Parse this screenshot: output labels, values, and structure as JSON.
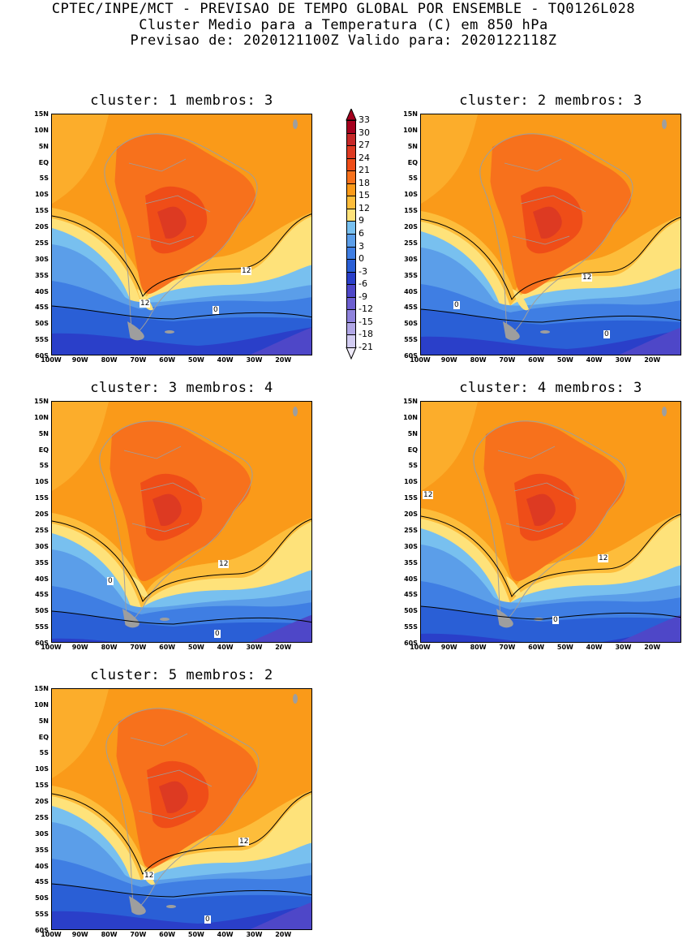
{
  "header": {
    "line1": "CPTEC/INPE/MCT - PREVISAO DE TEMPO GLOBAL POR ENSEMBLE - TQ0126L028",
    "line2": "Cluster Medio para a Temperatura (C) em 850 hPa",
    "line3": "Previsao de: 2020121100Z   Valido para: 2020122118Z"
  },
  "axes": {
    "y_ticks": [
      "15N",
      "10N",
      "5N",
      "EQ",
      "5S",
      "10S",
      "15S",
      "20S",
      "25S",
      "30S",
      "35S",
      "40S",
      "45S",
      "50S",
      "55S",
      "60S"
    ],
    "x_ticks": [
      "100W",
      "90W",
      "80W",
      "70W",
      "60W",
      "50W",
      "40W",
      "30W",
      "20W"
    ]
  },
  "panels": [
    {
      "title": "cluster: 1   membros: 3",
      "contour_labels": [
        "12",
        "12",
        "0"
      ]
    },
    {
      "title": "cluster: 2   membros: 3",
      "contour_labels": [
        "12",
        "0",
        "0"
      ]
    },
    {
      "title": "cluster: 3   membros: 4",
      "contour_labels": [
        "12",
        "0",
        "0"
      ]
    },
    {
      "title": "cluster: 4   membros: 3",
      "contour_labels": [
        "12",
        "12",
        "0"
      ]
    },
    {
      "title": "cluster: 5   membros: 2",
      "contour_labels": [
        "12",
        "12",
        "0"
      ]
    }
  ],
  "colorbar": {
    "labels": [
      "33",
      "30",
      "27",
      "24",
      "21",
      "18",
      "15",
      "12",
      "9",
      "6",
      "3",
      "0",
      "-3",
      "-6",
      "-9",
      "-12",
      "-15",
      "-18",
      "-21"
    ],
    "colors": [
      "#a5001e",
      "#c62828",
      "#dd3a22",
      "#ef4d18",
      "#f7711c",
      "#fa9a19",
      "#fdbd3b",
      "#fee27a",
      "#78c0ef",
      "#5b9ee9",
      "#3f7ee3",
      "#2a5fd6",
      "#2a3fc9",
      "#4e47c8",
      "#6c5fd0",
      "#8f83dc",
      "#b1a7e6",
      "#d2ccf2"
    ]
  }
}
